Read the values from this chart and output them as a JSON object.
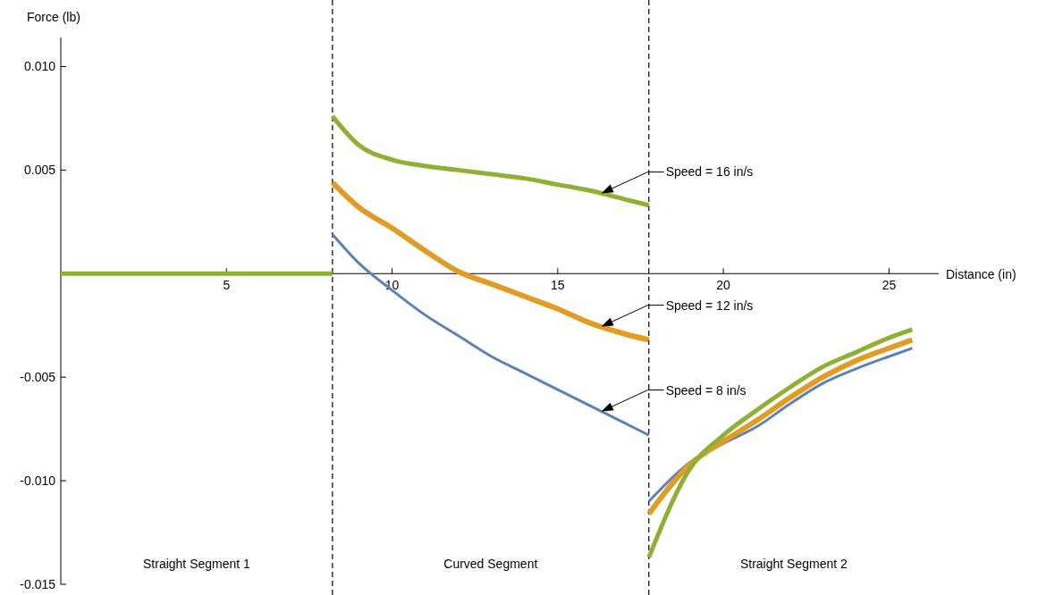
{
  "chart_data": {
    "type": "line",
    "xlabel": "Distance (in)",
    "ylabel": "Force (lb)",
    "xlim": [
      0,
      26.5
    ],
    "ylim": [
      -0.015,
      0.0114
    ],
    "xticks": [
      5,
      10,
      15,
      20,
      25
    ],
    "yticks": [
      {
        "value": 0.01,
        "label": "0.010"
      },
      {
        "value": 0.005,
        "label": "0.005"
      },
      {
        "value": -0.005,
        "label": "-0.005"
      },
      {
        "value": -0.01,
        "label": "-0.010"
      },
      {
        "value": -0.015,
        "label": "-0.015"
      }
    ],
    "grid": false,
    "marker": "none",
    "line_style": "solid",
    "series": [
      {
        "color": "#5e81b5",
        "x": [
          8.2,
          9,
          10,
          11,
          12,
          13,
          14,
          15,
          16,
          17,
          17.75
        ],
        "values": [
          0.0019,
          0.0005,
          -0.0008,
          -0.002,
          -0.003,
          -0.004,
          -0.0048,
          -0.0056,
          -0.0064,
          -0.0072,
          -0.0078
        ]
      },
      {
        "color": "#e19c24",
        "x": [
          8.2,
          9,
          10,
          11,
          12,
          13,
          14,
          15,
          16,
          17,
          17.75
        ],
        "values": [
          0.0044,
          0.0032,
          0.0022,
          0.0011,
          0.0001,
          -0.0005,
          -0.0011,
          -0.0017,
          -0.0024,
          -0.0029,
          -0.0032
        ]
      },
      {
        "color": "#8fb032",
        "x": [
          8.2,
          9,
          10,
          11,
          12,
          13,
          14,
          15,
          16,
          17,
          17.75
        ],
        "values": [
          0.0076,
          0.0062,
          0.0055,
          0.0052,
          0.005,
          0.0048,
          0.0046,
          0.0043,
          0.004,
          0.0036,
          0.0033
        ]
      },
      {
        "color": "#5e81b5",
        "x": [
          17.75,
          19,
          20,
          21,
          22,
          23,
          24,
          25,
          25.7
        ],
        "values": [
          -0.011,
          -0.0091,
          -0.0082,
          -0.0074,
          -0.0063,
          -0.0053,
          -0.0046,
          -0.004,
          -0.0036
        ]
      },
      {
        "color": "#e19c24",
        "x": [
          17.75,
          19,
          20,
          21,
          22,
          23,
          24,
          25,
          25.7
        ],
        "values": [
          -0.0116,
          -0.0092,
          -0.0081,
          -0.0071,
          -0.006,
          -0.005,
          -0.0042,
          -0.0036,
          -0.0032
        ]
      },
      {
        "color": "#8fb032",
        "x": [
          17.75,
          19,
          20,
          21,
          22,
          23,
          24,
          25,
          25.7
        ],
        "values": [
          -0.0137,
          -0.0094,
          -0.0078,
          -0.0066,
          -0.0055,
          -0.0045,
          -0.0038,
          -0.0031,
          -0.0027
        ]
      },
      {
        "color": "#8fb032",
        "x": [
          0,
          8.2
        ],
        "values": [
          0,
          0
        ]
      }
    ],
    "ref_lines": [
      {
        "axis": "x",
        "value": 8.2,
        "line_style": "dashed",
        "color": "#000000"
      },
      {
        "axis": "x",
        "value": 17.75,
        "line_style": "dashed",
        "color": "#000000"
      }
    ],
    "annotations": [
      "Speed = 16 in/s",
      "Speed = 12 in/s",
      "Speed = 8 in/s",
      "Straight Segment 1",
      "Curved Segment",
      "Straight Segment 2"
    ]
  }
}
